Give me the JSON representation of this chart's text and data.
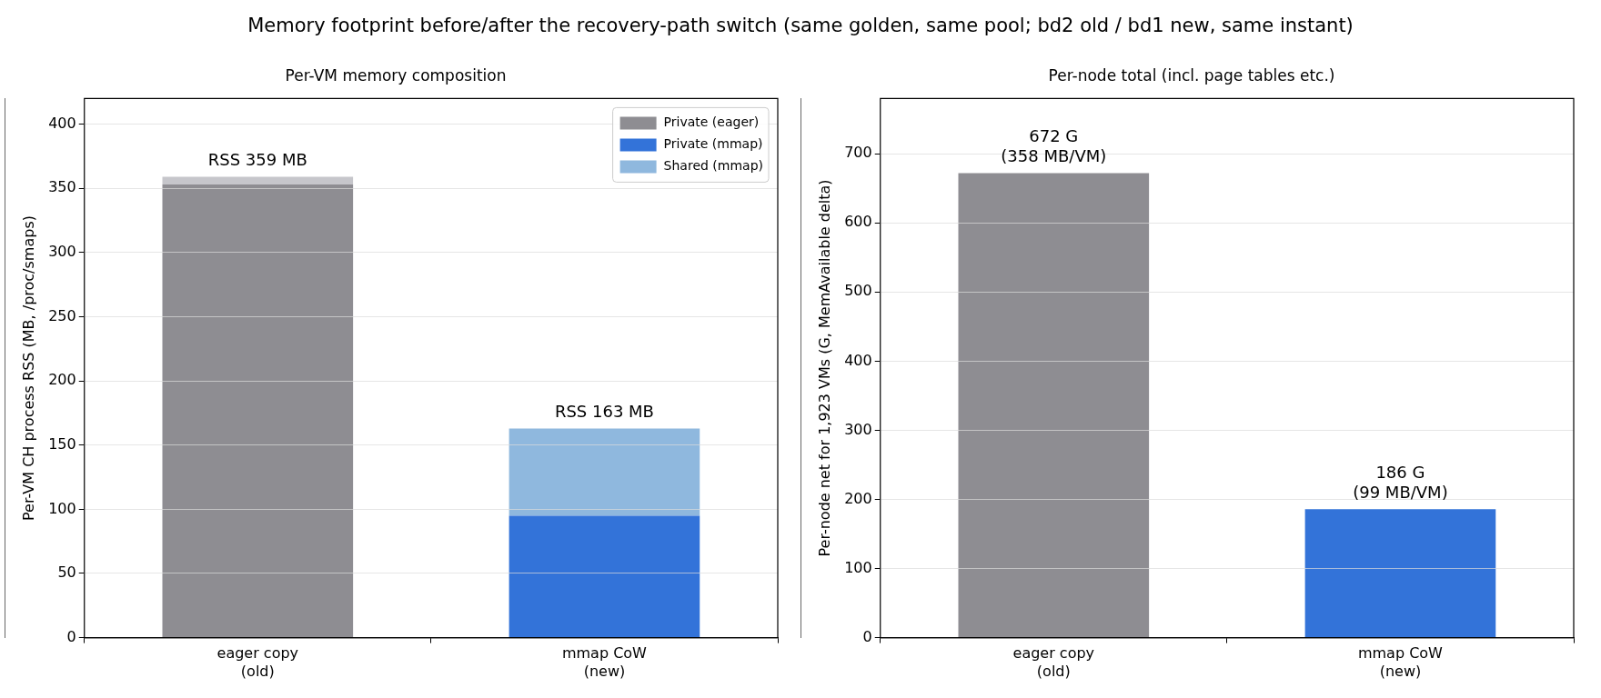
{
  "chart_data": [
    {
      "type": "bar",
      "title": "Per-VM memory composition",
      "annotations": [
        "Memory footprint before/after the recovery-path switch (same golden, same pool; bd2 old / bd1 new, same instant)"
      ],
      "ylabel": "Per-VM CH process RSS (MB, /proc/smaps)",
      "categories": [
        "eager copy\n(old)",
        "mmap CoW\n(new)"
      ],
      "stacked": true,
      "series": [
        {
          "name": "Private (eager)",
          "color": "#8e8d92",
          "values": [
            353,
            0
          ]
        },
        {
          "name": "Private (mmap)",
          "color": "#3373d9",
          "values": [
            0,
            95
          ]
        },
        {
          "name": "Shared (mmap)",
          "color": "#8fb8de",
          "colors": [
            "#c6c6cb",
            "#8fb8de"
          ],
          "values": [
            6,
            68
          ]
        }
      ],
      "totals": [
        "RSS 359 MB",
        "RSS 163 MB"
      ],
      "ylim": [
        0,
        420
      ],
      "yticks": [
        0,
        50,
        100,
        150,
        200,
        250,
        300,
        350,
        400
      ],
      "grid": "y",
      "legend": "top right"
    },
    {
      "type": "bar",
      "title": "Per-node total (incl. page tables etc.)",
      "ylabel": "Per-node net for 1,923 VMs (G, MemAvailable delta)",
      "categories": [
        "eager copy\n(old)",
        "mmap CoW\n(new)"
      ],
      "values": [
        672,
        186
      ],
      "colors": [
        "#8e8d92",
        "#3373d9"
      ],
      "value_labels": [
        "672 G\n(358 MB/VM)",
        "186 G\n(99 MB/VM)"
      ],
      "ylim": [
        0,
        780
      ],
      "yticks": [
        0,
        100,
        200,
        300,
        400,
        500,
        600,
        700
      ],
      "grid": "y",
      "legend": false
    }
  ]
}
